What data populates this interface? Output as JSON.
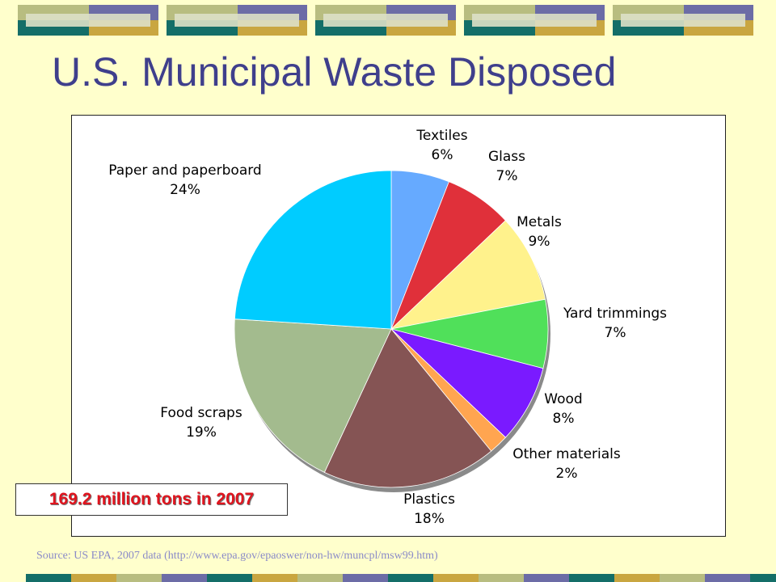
{
  "title": "U.S. Municipal Waste Disposed",
  "callout": "169.2 million tons in 2007",
  "source": "Source:  US EPA, 2007 data (http://www.epa.gov/epaoswer/non-hw/muncpl/msw99.htm)",
  "chart_data": {
    "type": "pie",
    "title": "",
    "start_angle_deg": 0,
    "direction": "clockwise",
    "slices": [
      {
        "label": "Textiles",
        "value": 6,
        "value_label": "6%",
        "color": "#66aaff"
      },
      {
        "label": "Glass",
        "value": 7,
        "value_label": "7%",
        "color": "#e0303a"
      },
      {
        "label": "Metals",
        "value": 9,
        "value_label": "9%",
        "color": "#fff28c"
      },
      {
        "label": "Yard trimmings",
        "value": 7,
        "value_label": "7%",
        "color": "#50e05a"
      },
      {
        "label": "Wood",
        "value": 8,
        "value_label": "8%",
        "color": "#7a1aff"
      },
      {
        "label": "Other materials",
        "value": 2,
        "value_label": "2%",
        "color": "#ffa550"
      },
      {
        "label": "Plastics",
        "value": 18,
        "value_label": "18%",
        "color": "#855454"
      },
      {
        "label": "Food scraps",
        "value": 19,
        "value_label": "19%",
        "color": "#a3bb8e"
      },
      {
        "label": "Paper and paperboard",
        "value": 24,
        "value_label": "24%",
        "color": "#00ccff"
      }
    ]
  },
  "decoration": {
    "top_band_colors": [
      "#b8bd80",
      "#6c6ca6",
      "#146e68",
      "#c9a640"
    ],
    "bottom_band_colors": [
      "#146e68",
      "#c9a640",
      "#b8bd80",
      "#6c6ca6"
    ]
  }
}
